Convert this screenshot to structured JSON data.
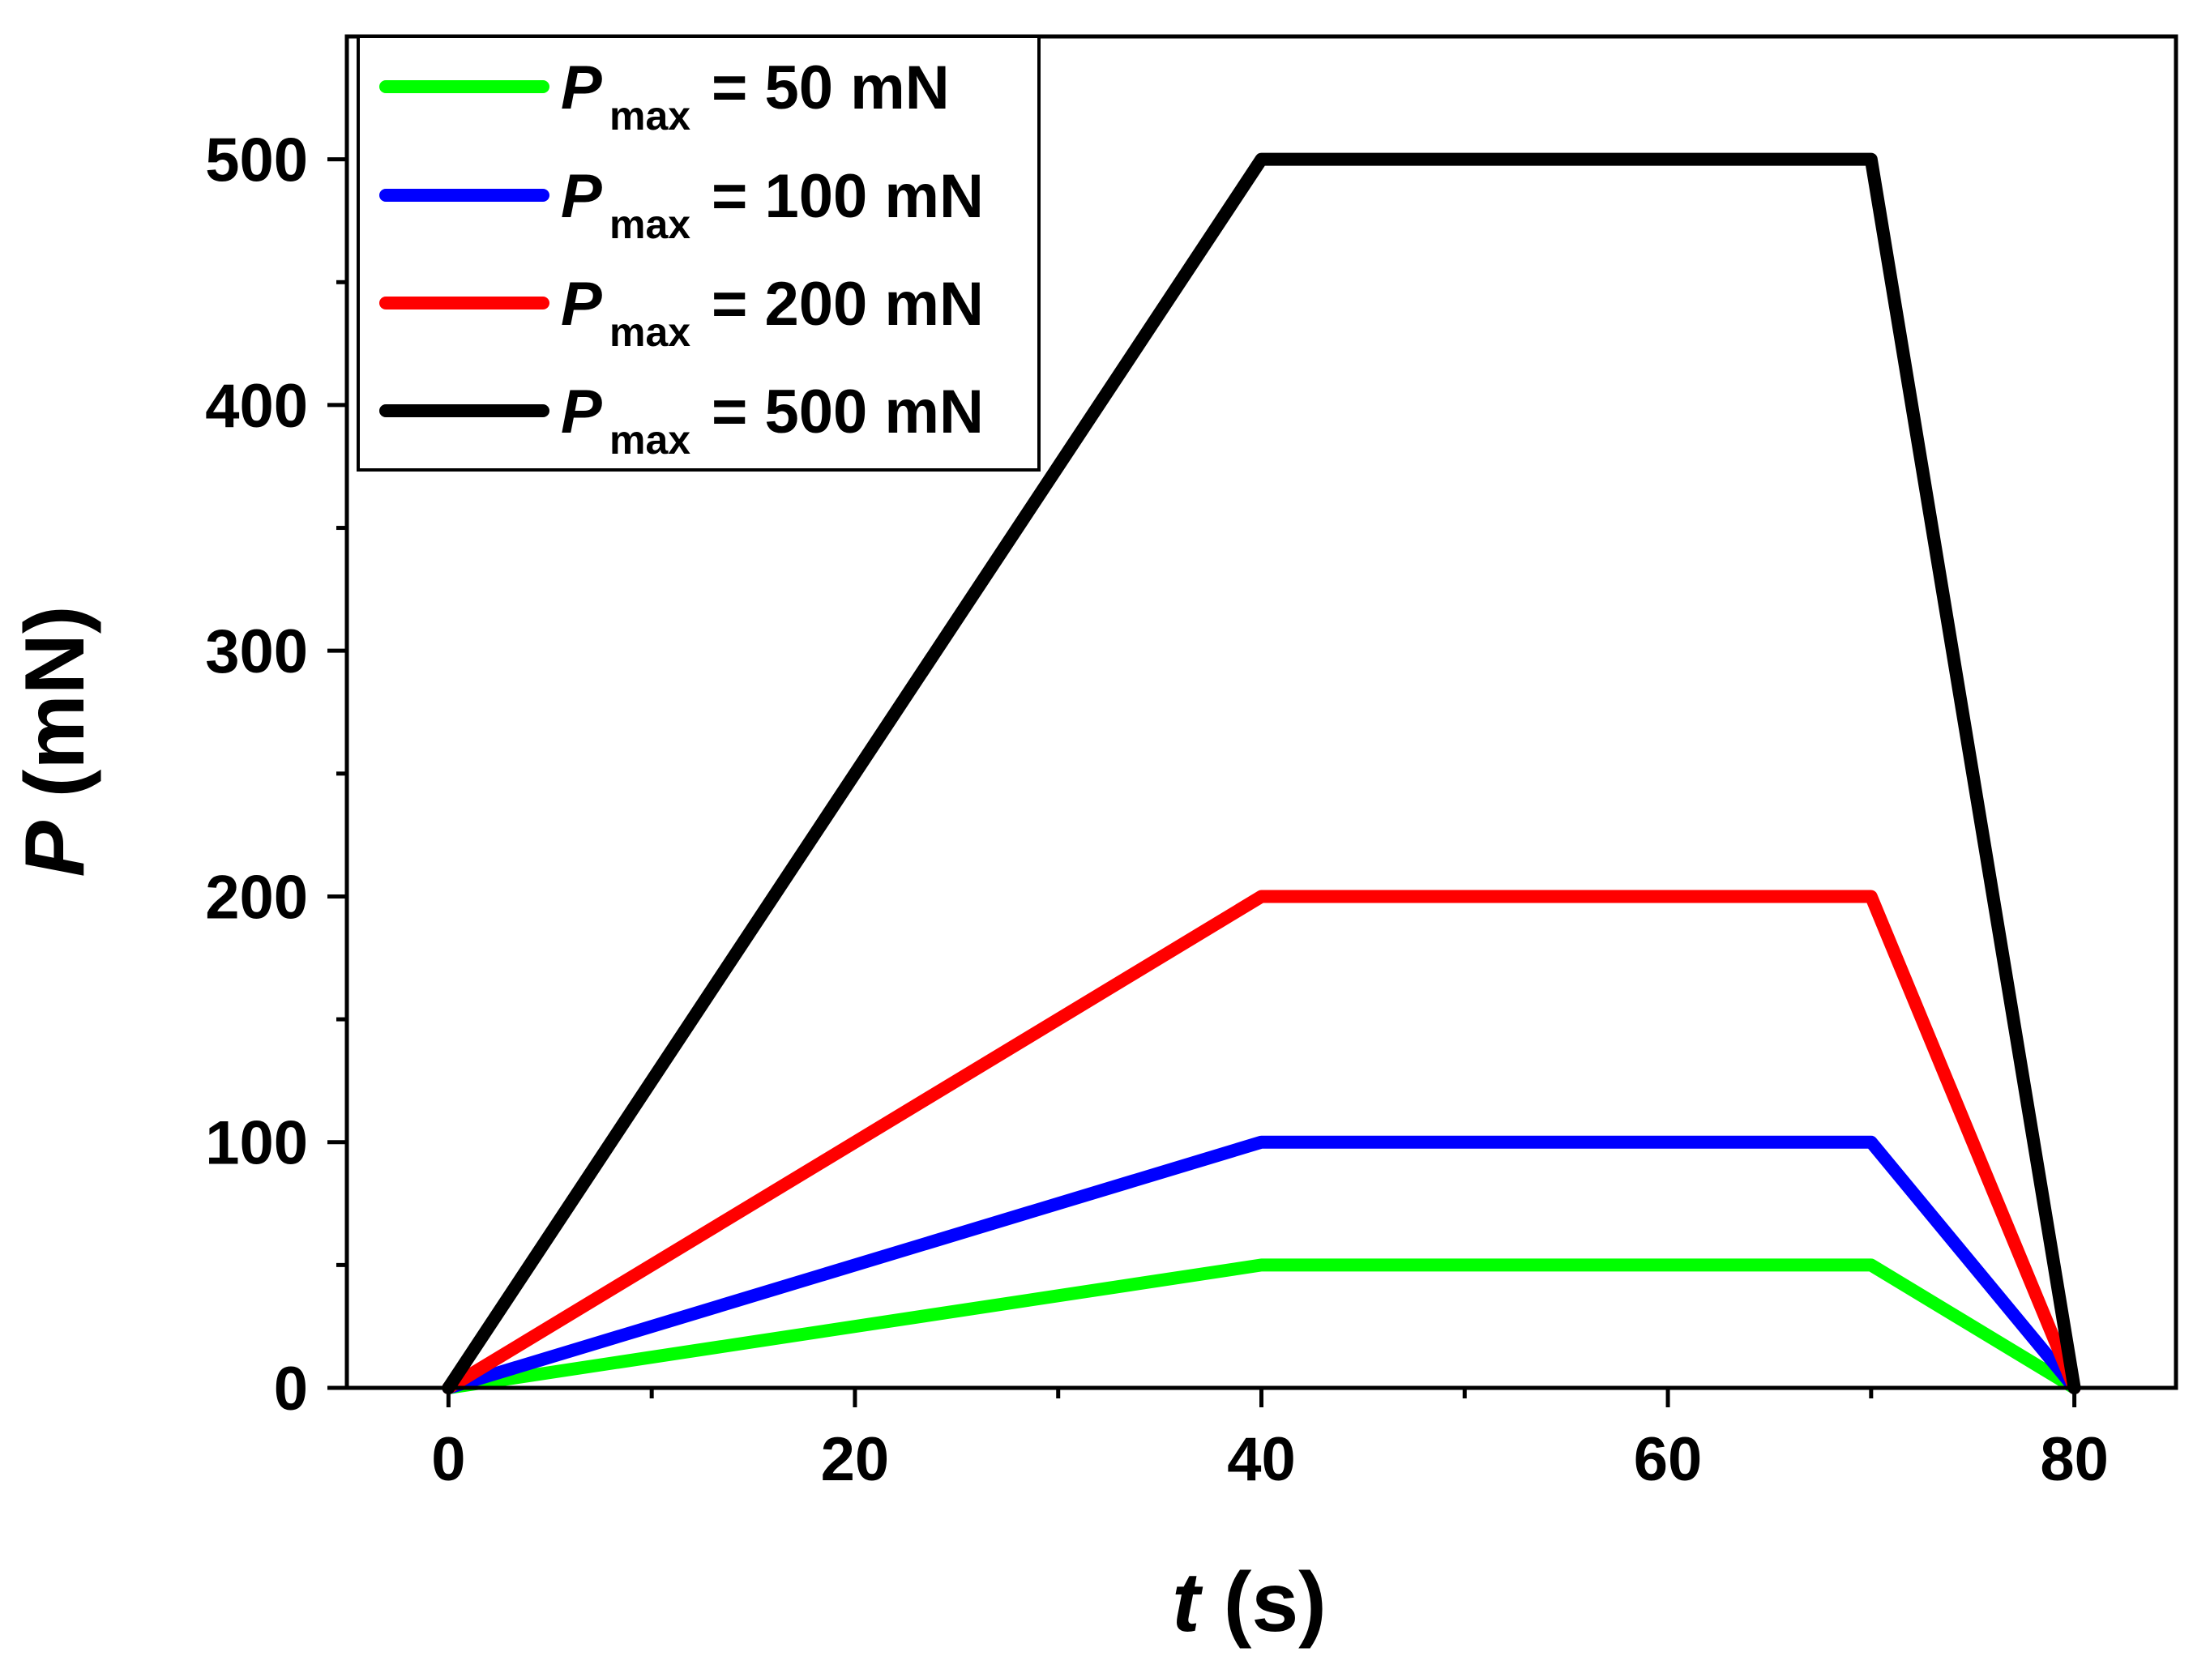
{
  "chart_data": {
    "type": "line",
    "xlabel": {
      "var": "t",
      "unit": "(s)"
    },
    "ylabel": {
      "var": "P",
      "unit": "(mN)"
    },
    "xlim": [
      -5,
      85
    ],
    "ylim": [
      0,
      550
    ],
    "x_major_ticks": [
      0,
      20,
      40,
      60,
      80
    ],
    "x_minor_ticks": [
      10,
      30,
      50,
      70
    ],
    "y_major_ticks": [
      0,
      100,
      200,
      300,
      400,
      500
    ],
    "y_minor_ticks": [
      50,
      150,
      250,
      350,
      450
    ],
    "legend_position": "top-left",
    "series": [
      {
        "name": "Pmax = 50 mN",
        "label_var": "P",
        "label_sub": "max",
        "label_rest": "= 50 mN",
        "color": "#00ff00",
        "points": [
          [
            0,
            0
          ],
          [
            40,
            50
          ],
          [
            70,
            50
          ],
          [
            80,
            0
          ]
        ]
      },
      {
        "name": "Pmax = 100 mN",
        "label_var": "P",
        "label_sub": "max",
        "label_rest": "= 100 mN",
        "color": "#0000ff",
        "points": [
          [
            0,
            0
          ],
          [
            40,
            100
          ],
          [
            70,
            100
          ],
          [
            80,
            0
          ]
        ]
      },
      {
        "name": "Pmax = 200 mN",
        "label_var": "P",
        "label_sub": "max",
        "label_rest": "= 200 mN",
        "color": "#ff0000",
        "points": [
          [
            0,
            0
          ],
          [
            40,
            200
          ],
          [
            70,
            200
          ],
          [
            80,
            0
          ]
        ]
      },
      {
        "name": "Pmax = 500 mN",
        "label_var": "P",
        "label_sub": "max",
        "label_rest": "= 500 mN",
        "color": "#000000",
        "points": [
          [
            0,
            0
          ],
          [
            40,
            500
          ],
          [
            70,
            500
          ],
          [
            80,
            0
          ]
        ]
      }
    ]
  }
}
